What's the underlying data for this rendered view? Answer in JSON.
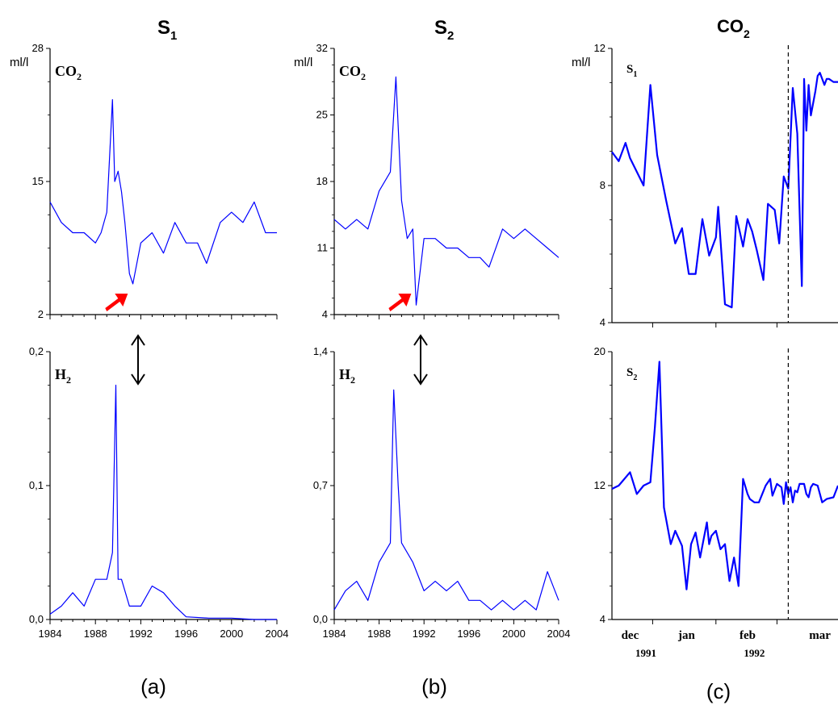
{
  "colors": {
    "series": "#0000ff",
    "arrow": "#ff0000",
    "axis": "#000000"
  },
  "panels": [
    {
      "label": "(a)",
      "title": "S",
      "title_sub": "1"
    },
    {
      "label": "(b)",
      "title": "S",
      "title_sub": "2"
    },
    {
      "label": "(c)",
      "title": "CO",
      "title_sub": "2"
    }
  ],
  "chart_data": [
    {
      "type": "line",
      "panel": "a",
      "name": "S1 CO2",
      "ylabel": "ml/l",
      "annotation": "CO",
      "annotation_sub": "2",
      "ylim": [
        2,
        28
      ],
      "yticks": [
        "2",
        "15",
        "28"
      ],
      "xlim": [
        1984,
        2004
      ],
      "xticks": [],
      "x": [
        1984,
        1985,
        1986,
        1987,
        1988,
        1988.5,
        1989,
        1989.5,
        1989.7,
        1990,
        1990.3,
        1990.6,
        1991,
        1991.3,
        1992,
        1993,
        1994,
        1995,
        1996,
        1997,
        1997.8,
        1999,
        2000,
        2001,
        2002,
        2003,
        2004
      ],
      "y": [
        13,
        11,
        10,
        10,
        9,
        10,
        12,
        23,
        15,
        16,
        14,
        11,
        6,
        5,
        9,
        10,
        8,
        11,
        9,
        9,
        7,
        11,
        12,
        11,
        13,
        10,
        10
      ],
      "arrow_marker_year": 1990
    },
    {
      "type": "line",
      "panel": "a",
      "name": "S1 H2",
      "annotation": "H",
      "annotation_sub": "2",
      "ylim": [
        0,
        0.2
      ],
      "yticks": [
        "0,0",
        "0,1",
        "0,2"
      ],
      "xlim": [
        1984,
        2004
      ],
      "xticks": [
        "1984",
        "1988",
        "1992",
        "1996",
        "2000",
        "2004"
      ],
      "x": [
        1984,
        1985,
        1986,
        1987,
        1988,
        1989,
        1989.5,
        1989.8,
        1990,
        1990.3,
        1991,
        1992,
        1993,
        1994,
        1995,
        1996,
        1998,
        2000,
        2002,
        2004
      ],
      "y": [
        0.004,
        0.01,
        0.02,
        0.01,
        0.03,
        0.03,
        0.05,
        0.175,
        0.03,
        0.03,
        0.01,
        0.01,
        0.025,
        0.02,
        0.01,
        0.002,
        0.001,
        0.001,
        0.0,
        0.0
      ]
    },
    {
      "type": "line",
      "panel": "b",
      "name": "S2 CO2",
      "ylabel": "ml/l",
      "annotation": "CO",
      "annotation_sub": "2",
      "ylim": [
        4,
        32
      ],
      "yticks": [
        "4",
        "11",
        "18",
        "25",
        "32"
      ],
      "xlim": [
        1984,
        2004
      ],
      "xticks": [],
      "x": [
        1984,
        1985,
        1986,
        1987,
        1988,
        1989,
        1989.5,
        1990,
        1990.5,
        1991,
        1991.3,
        1992,
        1993,
        1994,
        1995,
        1996,
        1997,
        1997.8,
        1999,
        2000,
        2001,
        2002,
        2003,
        2004
      ],
      "y": [
        14,
        13,
        14,
        13,
        17,
        19,
        29,
        16,
        12,
        13,
        5,
        12,
        12,
        11,
        11,
        10,
        10,
        9,
        13,
        12,
        13,
        12,
        11,
        10
      ],
      "arrow_marker_year": 1990
    },
    {
      "type": "line",
      "panel": "b",
      "name": "S2 H2",
      "annotation": "H",
      "annotation_sub": "2",
      "ylim": [
        0,
        1.4
      ],
      "yticks": [
        "0,0",
        "0,7",
        "1,4"
      ],
      "xlim": [
        1984,
        2004
      ],
      "xticks": [
        "1984",
        "1988",
        "1992",
        "1996",
        "2000",
        "2004"
      ],
      "x": [
        1984,
        1985,
        1986,
        1987,
        1988,
        1989,
        1989.3,
        1989.7,
        1990,
        1991,
        1992,
        1993,
        1994,
        1995,
        1996,
        1997,
        1998,
        1999,
        2000,
        2001,
        2002,
        2003,
        2004
      ],
      "y": [
        0.05,
        0.15,
        0.2,
        0.1,
        0.3,
        0.4,
        1.2,
        0.7,
        0.4,
        0.3,
        0.15,
        0.2,
        0.15,
        0.2,
        0.1,
        0.1,
        0.05,
        0.1,
        0.05,
        0.1,
        0.05,
        0.25,
        0.1
      ]
    },
    {
      "type": "line",
      "panel": "c",
      "name": "S1",
      "ylabel": "ml/l",
      "annotation": "S",
      "annotation_sub": "1",
      "ylim": [
        3,
        12
      ],
      "yticks": [
        "4",
        "8",
        "12"
      ],
      "xlim": [
        0,
        100
      ],
      "xticks": [],
      "x": [
        0,
        3,
        6,
        8,
        14,
        17,
        20,
        24,
        28,
        31,
        34,
        37,
        40,
        43,
        46,
        47,
        50,
        53,
        55,
        58,
        60,
        62,
        64,
        67,
        69,
        72,
        74,
        76,
        78,
        80,
        82,
        84,
        85,
        86,
        87,
        88,
        90,
        91,
        92,
        93,
        94,
        95,
        96,
        98,
        100
      ],
      "y": [
        8.6,
        8.3,
        8.9,
        8.4,
        7.5,
        10.8,
        8.5,
        7.0,
        5.6,
        6.1,
        4.6,
        4.6,
        6.4,
        5.2,
        5.8,
        6.8,
        3.6,
        3.5,
        6.5,
        5.5,
        6.4,
        6.0,
        5.4,
        4.4,
        6.9,
        6.7,
        5.6,
        7.8,
        7.4,
        10.7,
        9.2,
        4.2,
        11.0,
        9.3,
        10.8,
        9.8,
        10.6,
        11.1,
        11.2,
        11.0,
        10.8,
        11.0,
        11.0,
        10.9,
        10.9
      ],
      "xlabels": [
        "dec",
        "jan",
        "feb",
        "mar"
      ],
      "years": [
        "1991",
        "1992"
      ],
      "dashed_marker_x": 78
    },
    {
      "type": "line",
      "panel": "c",
      "name": "S2",
      "annotation": "S",
      "annotation_sub": "2",
      "ylim": [
        4,
        20
      ],
      "yticks": [
        "4",
        "12",
        "20"
      ],
      "xlim": [
        0,
        100
      ],
      "xticks": [],
      "x": [
        0,
        3,
        8,
        11,
        14,
        17,
        19,
        21,
        23,
        26,
        28,
        31,
        33,
        35,
        37,
        39,
        42,
        43,
        44,
        46,
        48,
        50,
        52,
        54,
        56,
        58,
        60,
        61,
        63,
        65,
        68,
        70,
        71,
        73,
        75,
        76,
        77,
        78,
        79,
        80,
        81,
        82,
        83,
        84,
        85,
        86,
        87,
        88,
        89,
        91,
        93,
        95,
        98,
        100
      ],
      "y": [
        11.8,
        12.0,
        12.8,
        11.5,
        12.0,
        12.2,
        15.5,
        19.4,
        10.7,
        8.5,
        9.3,
        8.4,
        5.8,
        8.5,
        9.2,
        7.7,
        9.8,
        8.5,
        9.0,
        9.3,
        8.2,
        8.5,
        6.3,
        7.7,
        6.0,
        12.4,
        11.5,
        11.2,
        11.0,
        11.0,
        12.0,
        12.4,
        11.4,
        12.1,
        11.9,
        10.9,
        12.2,
        11.5,
        11.9,
        11.0,
        11.7,
        11.6,
        12.1,
        12.1,
        12.1,
        11.5,
        11.3,
        11.9,
        12.1,
        12.0,
        11.0,
        11.2,
        11.3,
        12.0
      ],
      "dashed_marker_x": 78
    }
  ]
}
